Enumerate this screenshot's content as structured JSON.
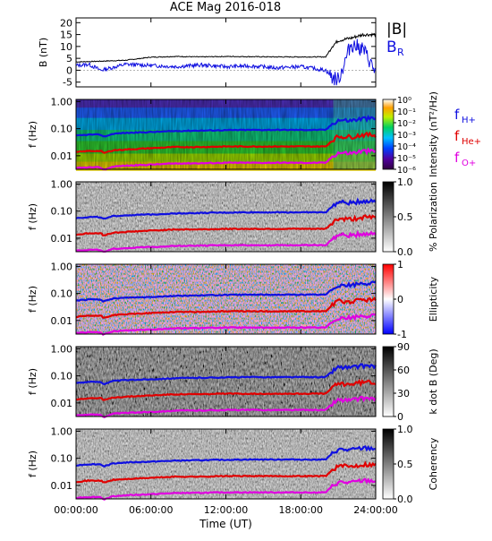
{
  "title": "ACE Mag 2016-018",
  "colors": {
    "h_plus": "#1010e0",
    "he_plus": "#e00000",
    "o_plus": "#e000e0",
    "b_total": "#000000",
    "b_r": "#1010e0"
  },
  "chart_data": [
    {
      "type": "line",
      "panel": "magnetic-field",
      "ylabel": "B (nT)",
      "ylim": [
        -7,
        22
      ],
      "yticks": [
        -5,
        0,
        5,
        10,
        15,
        20
      ],
      "legend": [
        "|B|",
        "B_R"
      ],
      "legend_placement": "right",
      "series": [
        {
          "name": "|B|",
          "x": [
            0,
            2,
            4,
            6,
            8,
            10,
            12,
            14,
            16,
            18,
            20,
            20.5,
            21,
            22,
            23,
            24
          ],
          "values": [
            3.5,
            3.8,
            4.2,
            5.5,
            5.8,
            5.6,
            5.8,
            5.7,
            5.6,
            5.6,
            5.6,
            10,
            12.5,
            13.5,
            15,
            15
          ]
        },
        {
          "name": "B_R",
          "x": [
            0,
            1,
            2,
            4,
            6,
            8,
            10,
            12,
            14,
            16,
            18,
            20,
            20.5,
            21,
            21.5,
            22,
            23,
            24
          ],
          "values": [
            2,
            2.5,
            0,
            2.5,
            2,
            1.5,
            2.2,
            1.5,
            1.8,
            1.0,
            1.5,
            0,
            -3,
            -4,
            3,
            11,
            9,
            -1
          ]
        }
      ]
    },
    {
      "type": "heatmap",
      "panel": "intensity",
      "ylabel": "f (Hz)",
      "yticks": [
        "0.01",
        "0.10",
        "1.00"
      ],
      "colorbar_label": "Intensity (nT²/Hz)",
      "colorbar_ticks": [
        "10⁰",
        "10⁻¹",
        "10⁻²",
        "10⁻³",
        "10⁻⁴",
        "10⁻⁵",
        "10⁻⁶"
      ],
      "legend": [
        "f_H+",
        "f_He+",
        "f_O+"
      ]
    },
    {
      "type": "heatmap",
      "panel": "polarization",
      "ylabel": "f (Hz)",
      "yticks": [
        "0.01",
        "0.10",
        "1.00"
      ],
      "colorbar_label": "% Polarization",
      "colorbar_ticks": [
        "0.0",
        "0.5",
        "1.0"
      ]
    },
    {
      "type": "heatmap",
      "panel": "ellipticity",
      "ylabel": "f (Hz)",
      "yticks": [
        "0.01",
        "0.10",
        "1.00"
      ],
      "colorbar_label": "Ellipticity",
      "colorbar_ticks": [
        "-1",
        "0",
        "1"
      ]
    },
    {
      "type": "heatmap",
      "panel": "k-dot-b",
      "ylabel": "f (Hz)",
      "yticks": [
        "0.01",
        "0.10",
        "1.00"
      ],
      "colorbar_label": "k dot B (Deg)",
      "colorbar_ticks": [
        "0",
        "30",
        "60",
        "90"
      ]
    },
    {
      "type": "heatmap",
      "panel": "coherency",
      "ylabel": "f (Hz)",
      "yticks": [
        "0.01",
        "0.10",
        "1.00"
      ],
      "colorbar_label": "Coherency",
      "colorbar_ticks": [
        "0.0",
        "0.5",
        "1.0"
      ]
    }
  ],
  "gyrofrequency_lines": {
    "x": [
      0,
      1,
      2,
      2.2,
      3,
      4,
      6,
      8,
      10,
      12,
      14,
      16,
      18,
      20,
      20.6,
      21,
      22,
      23,
      24
    ],
    "f_H+": [
      0.055,
      0.06,
      0.06,
      0.05,
      0.065,
      0.07,
      0.075,
      0.082,
      0.085,
      0.088,
      0.09,
      0.09,
      0.09,
      0.09,
      0.16,
      0.21,
      0.2,
      0.24,
      0.23
    ],
    "f_He+": [
      0.0135,
      0.015,
      0.015,
      0.0125,
      0.016,
      0.017,
      0.019,
      0.021,
      0.021,
      0.022,
      0.022,
      0.022,
      0.022,
      0.022,
      0.04,
      0.052,
      0.05,
      0.06,
      0.058
    ],
    "f_O+": [
      0.0035,
      0.0037,
      0.0037,
      0.003,
      0.004,
      0.0043,
      0.0047,
      0.0052,
      0.0053,
      0.0055,
      0.0055,
      0.0055,
      0.0055,
      0.0055,
      0.01,
      0.013,
      0.0125,
      0.015,
      0.0145
    ]
  },
  "x_axis": {
    "label": "Time (UT)",
    "ticks": [
      "00:00:00",
      "06:00:00",
      "12:00:00",
      "18:00:00",
      "24:00:00"
    ]
  },
  "labels": {
    "b_total": "|B|",
    "b_r": "B",
    "b_r_sub": "R",
    "f_h": "f",
    "f_h_sub": "H+",
    "f_he": "f",
    "f_he_sub": "He+",
    "f_o": "f",
    "f_o_sub": "O+"
  }
}
